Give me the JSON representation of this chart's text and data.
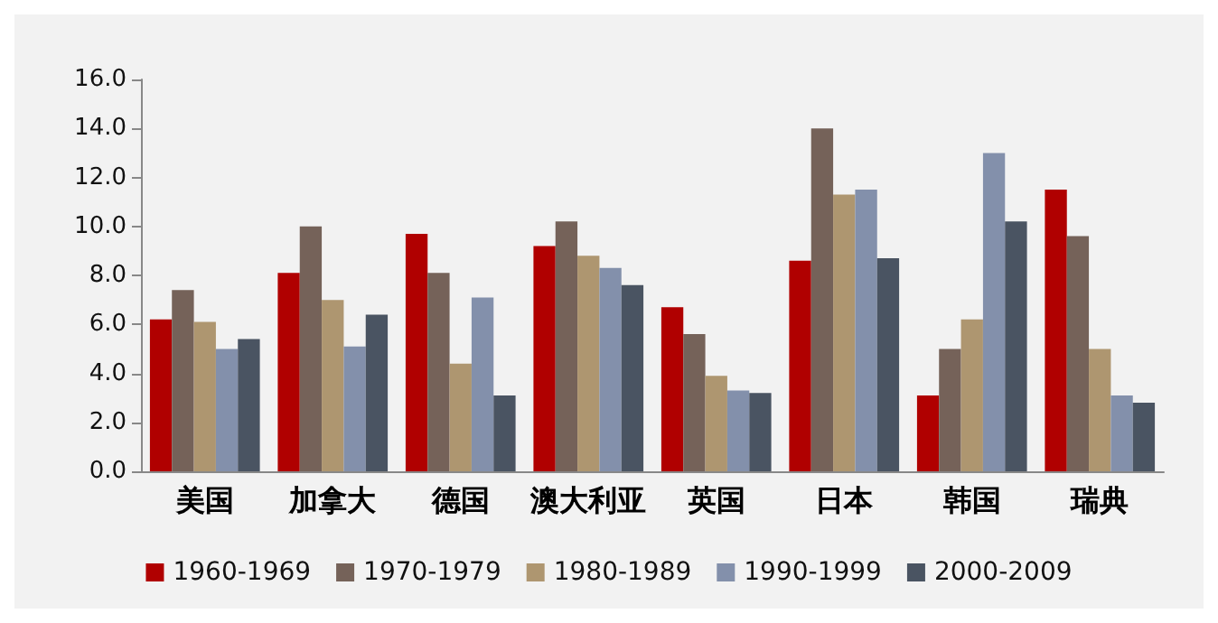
{
  "chart_data": {
    "type": "bar",
    "categories": [
      "美国",
      "加拿大",
      "德国",
      "澳大利亚",
      "英国",
      "日本",
      "韩国",
      "瑞典"
    ],
    "series": [
      {
        "name": "1960-1969",
        "color": "#b00000",
        "values": [
          6.2,
          8.1,
          9.7,
          9.2,
          6.7,
          8.6,
          3.1,
          11.5
        ]
      },
      {
        "name": "1970-1979",
        "color": "#756259",
        "values": [
          7.4,
          10.0,
          8.1,
          10.2,
          5.6,
          14.0,
          5.0,
          9.6
        ]
      },
      {
        "name": "1980-1989",
        "color": "#ae9670",
        "values": [
          6.1,
          7.0,
          4.4,
          8.8,
          3.9,
          11.3,
          6.2,
          5.0
        ]
      },
      {
        "name": "1990-1999",
        "color": "#8390ab",
        "values": [
          5.0,
          5.1,
          7.1,
          8.3,
          3.3,
          11.5,
          13.0,
          3.1
        ]
      },
      {
        "name": "2000-2009",
        "color": "#4a5462",
        "values": [
          5.4,
          6.4,
          3.1,
          7.6,
          3.2,
          8.7,
          10.2,
          2.8
        ]
      }
    ],
    "ylim": [
      0,
      16
    ],
    "yticks": [
      {
        "value": 0,
        "label": "0.0"
      },
      {
        "value": 2,
        "label": "2.0"
      },
      {
        "value": 4,
        "label": "4.0"
      },
      {
        "value": 6,
        "label": "6.0"
      },
      {
        "value": 8,
        "label": "8.0"
      },
      {
        "value": 10,
        "label": "10.0"
      },
      {
        "value": 12,
        "label": "12.0"
      },
      {
        "value": 14,
        "label": "14.0"
      },
      {
        "value": 16,
        "label": "16.0"
      }
    ],
    "grid": false,
    "legend": "bottom"
  }
}
